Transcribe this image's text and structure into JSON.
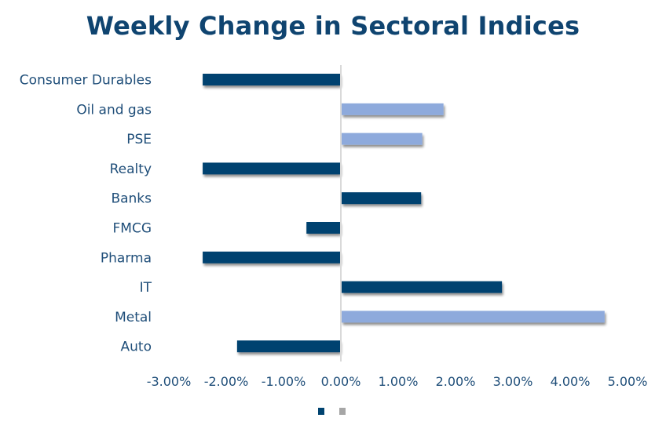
{
  "chart_data": {
    "type": "bar",
    "orientation": "horizontal",
    "title": "Weekly Change in Sectoral Indices",
    "xlabel": "",
    "ylabel": "",
    "categories": [
      "Consumer Durables",
      "Oil and gas",
      "PSE",
      "Realty",
      "Banks",
      "FMCG",
      "Pharma",
      "IT",
      "Metal",
      "Auto"
    ],
    "values": [
      -2.41,
      1.79,
      1.42,
      -2.41,
      1.4,
      -0.6,
      -2.41,
      2.81,
      4.6,
      -1.81
    ],
    "bar_colors": [
      "#004370",
      "#8eaadc",
      "#8eaadc",
      "#004370",
      "#004370",
      "#004370",
      "#004370",
      "#004370",
      "#8eaadc",
      "#004370"
    ],
    "xlim": [
      -3,
      5
    ],
    "x_ticks": [
      -3,
      -2,
      -1,
      0,
      1,
      2,
      3,
      4,
      5
    ],
    "x_tick_labels": [
      "-3.00%",
      "-2.00%",
      "-1.00%",
      "0.00%",
      "1.00%",
      "2.00%",
      "3.00%",
      "4.00%",
      "5.00%"
    ],
    "grid": false,
    "legend": {
      "position": "bottom",
      "entries": [
        {
          "label": "",
          "color": "#004370"
        },
        {
          "label": "",
          "color": "#a6a6a6"
        }
      ]
    }
  },
  "colors": {
    "title": "#0f4470",
    "text": "#1f4e79",
    "axis": "#d9d9d9"
  }
}
